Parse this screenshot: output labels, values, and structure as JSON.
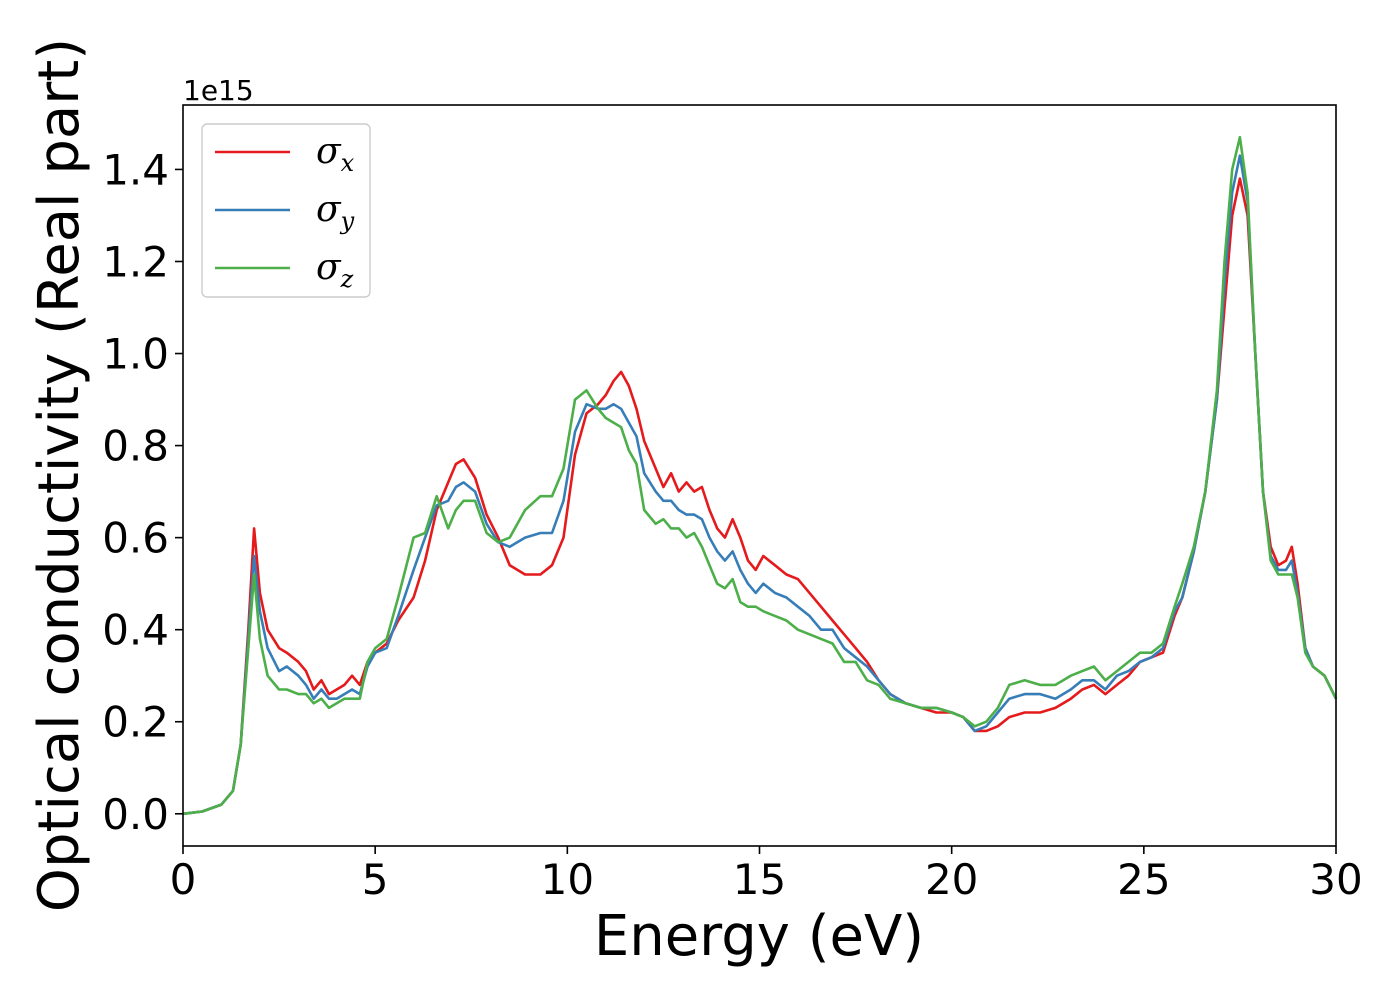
{
  "chart_data": {
    "type": "line",
    "xlabel": "Energy (eV)",
    "ylabel": "Optical conductivity (Real part)",
    "y_offset_label": "1e15",
    "xlim": [
      0,
      30
    ],
    "ylim": [
      -0.07,
      1.54
    ],
    "xticks": [
      0,
      5,
      10,
      15,
      20,
      25,
      30
    ],
    "xtick_labels": [
      "0",
      "5",
      "10",
      "15",
      "20",
      "25",
      "30"
    ],
    "yticks": [
      0.0,
      0.2,
      0.4,
      0.6,
      0.8,
      1.0,
      1.2,
      1.4
    ],
    "ytick_labels": [
      "0.0",
      "0.2",
      "0.4",
      "0.6",
      "0.8",
      "1.0",
      "1.2",
      "1.4"
    ],
    "grid": false,
    "legend_position": "top-left",
    "series": [
      {
        "name": "σx",
        "symbol": "σ",
        "sub": "x",
        "color": "#e41a1c",
        "x": [
          0,
          0.5,
          1.0,
          1.3,
          1.5,
          1.7,
          1.85,
          2.0,
          2.2,
          2.5,
          2.7,
          3.0,
          3.2,
          3.4,
          3.6,
          3.8,
          4.0,
          4.2,
          4.4,
          4.6,
          4.8,
          5.0,
          5.3,
          5.6,
          6.0,
          6.3,
          6.6,
          6.9,
          7.1,
          7.3,
          7.6,
          7.9,
          8.2,
          8.5,
          8.9,
          9.3,
          9.6,
          9.9,
          10.2,
          10.5,
          10.8,
          11.0,
          11.2,
          11.4,
          11.6,
          11.8,
          12.0,
          12.3,
          12.5,
          12.7,
          12.9,
          13.1,
          13.3,
          13.5,
          13.7,
          13.9,
          14.1,
          14.3,
          14.5,
          14.7,
          14.9,
          15.1,
          15.4,
          15.7,
          16.0,
          16.3,
          16.6,
          16.9,
          17.2,
          17.5,
          17.8,
          18.1,
          18.4,
          18.8,
          19.2,
          19.6,
          20.0,
          20.3,
          20.6,
          20.9,
          21.2,
          21.5,
          21.9,
          22.3,
          22.7,
          23.1,
          23.4,
          23.7,
          24.0,
          24.3,
          24.6,
          24.9,
          25.2,
          25.5,
          25.8,
          26.0,
          26.3,
          26.6,
          26.9,
          27.1,
          27.3,
          27.5,
          27.7,
          27.9,
          28.1,
          28.3,
          28.5,
          28.7,
          28.85,
          29.0,
          29.2,
          29.4,
          29.7,
          30.0
        ],
        "y": [
          0,
          0.005,
          0.02,
          0.05,
          0.15,
          0.4,
          0.62,
          0.48,
          0.4,
          0.36,
          0.35,
          0.33,
          0.31,
          0.27,
          0.29,
          0.26,
          0.27,
          0.28,
          0.3,
          0.28,
          0.33,
          0.35,
          0.37,
          0.42,
          0.47,
          0.55,
          0.66,
          0.72,
          0.76,
          0.77,
          0.73,
          0.65,
          0.6,
          0.54,
          0.52,
          0.52,
          0.54,
          0.6,
          0.78,
          0.87,
          0.89,
          0.91,
          0.94,
          0.96,
          0.93,
          0.88,
          0.81,
          0.75,
          0.71,
          0.74,
          0.7,
          0.72,
          0.7,
          0.71,
          0.66,
          0.62,
          0.6,
          0.64,
          0.6,
          0.55,
          0.53,
          0.56,
          0.54,
          0.52,
          0.51,
          0.48,
          0.45,
          0.42,
          0.39,
          0.36,
          0.33,
          0.29,
          0.26,
          0.24,
          0.23,
          0.22,
          0.22,
          0.21,
          0.18,
          0.18,
          0.19,
          0.21,
          0.22,
          0.22,
          0.23,
          0.25,
          0.27,
          0.28,
          0.26,
          0.28,
          0.3,
          0.33,
          0.34,
          0.35,
          0.43,
          0.47,
          0.57,
          0.7,
          0.9,
          1.1,
          1.3,
          1.38,
          1.3,
          1.0,
          0.7,
          0.58,
          0.54,
          0.55,
          0.58,
          0.5,
          0.36,
          0.32,
          0.3,
          0.25
        ]
      },
      {
        "name": "σy",
        "symbol": "σ",
        "sub": "y",
        "color": "#377eb8",
        "x": [
          0,
          0.5,
          1.0,
          1.3,
          1.5,
          1.7,
          1.85,
          2.0,
          2.2,
          2.5,
          2.7,
          3.0,
          3.2,
          3.4,
          3.6,
          3.8,
          4.0,
          4.2,
          4.4,
          4.6,
          4.8,
          5.0,
          5.3,
          5.6,
          6.0,
          6.3,
          6.6,
          6.9,
          7.1,
          7.3,
          7.6,
          7.9,
          8.2,
          8.5,
          8.9,
          9.3,
          9.6,
          9.9,
          10.2,
          10.5,
          10.8,
          11.0,
          11.2,
          11.4,
          11.6,
          11.8,
          12.0,
          12.3,
          12.5,
          12.7,
          12.9,
          13.1,
          13.3,
          13.5,
          13.7,
          13.9,
          14.1,
          14.3,
          14.5,
          14.7,
          14.9,
          15.1,
          15.4,
          15.7,
          16.0,
          16.3,
          16.6,
          16.9,
          17.2,
          17.5,
          17.8,
          18.1,
          18.4,
          18.8,
          19.2,
          19.6,
          20.0,
          20.3,
          20.6,
          20.9,
          21.2,
          21.5,
          21.9,
          22.3,
          22.7,
          23.1,
          23.4,
          23.7,
          24.0,
          24.3,
          24.6,
          24.9,
          25.2,
          25.5,
          25.8,
          26.0,
          26.3,
          26.6,
          26.9,
          27.1,
          27.3,
          27.5,
          27.7,
          27.9,
          28.1,
          28.3,
          28.5,
          28.7,
          28.85,
          29.0,
          29.2,
          29.4,
          29.7,
          30.0
        ],
        "y": [
          0,
          0.005,
          0.02,
          0.05,
          0.15,
          0.38,
          0.56,
          0.44,
          0.36,
          0.31,
          0.32,
          0.3,
          0.28,
          0.25,
          0.27,
          0.25,
          0.25,
          0.26,
          0.27,
          0.26,
          0.32,
          0.35,
          0.36,
          0.43,
          0.53,
          0.6,
          0.67,
          0.68,
          0.71,
          0.72,
          0.7,
          0.63,
          0.59,
          0.58,
          0.6,
          0.61,
          0.61,
          0.68,
          0.83,
          0.89,
          0.88,
          0.88,
          0.89,
          0.88,
          0.85,
          0.82,
          0.74,
          0.7,
          0.68,
          0.68,
          0.66,
          0.65,
          0.65,
          0.64,
          0.6,
          0.57,
          0.55,
          0.57,
          0.53,
          0.5,
          0.48,
          0.5,
          0.48,
          0.47,
          0.45,
          0.43,
          0.4,
          0.4,
          0.36,
          0.34,
          0.32,
          0.29,
          0.26,
          0.24,
          0.23,
          0.23,
          0.22,
          0.21,
          0.18,
          0.19,
          0.22,
          0.25,
          0.26,
          0.26,
          0.25,
          0.27,
          0.29,
          0.29,
          0.27,
          0.3,
          0.31,
          0.33,
          0.34,
          0.36,
          0.44,
          0.47,
          0.57,
          0.7,
          0.9,
          1.15,
          1.35,
          1.43,
          1.33,
          1.0,
          0.7,
          0.56,
          0.53,
          0.53,
          0.55,
          0.48,
          0.36,
          0.32,
          0.3,
          0.25
        ]
      },
      {
        "name": "σz",
        "symbol": "σ",
        "sub": "z",
        "color": "#4daf4a",
        "x": [
          0,
          0.5,
          1.0,
          1.3,
          1.5,
          1.7,
          1.85,
          2.0,
          2.2,
          2.5,
          2.7,
          3.0,
          3.2,
          3.4,
          3.6,
          3.8,
          4.0,
          4.2,
          4.4,
          4.6,
          4.8,
          5.0,
          5.3,
          5.6,
          6.0,
          6.3,
          6.6,
          6.9,
          7.1,
          7.3,
          7.6,
          7.9,
          8.2,
          8.5,
          8.9,
          9.3,
          9.6,
          9.9,
          10.2,
          10.5,
          10.8,
          11.0,
          11.2,
          11.4,
          11.6,
          11.8,
          12.0,
          12.3,
          12.5,
          12.7,
          12.9,
          13.1,
          13.3,
          13.5,
          13.7,
          13.9,
          14.1,
          14.3,
          14.5,
          14.7,
          14.9,
          15.1,
          15.4,
          15.7,
          16.0,
          16.3,
          16.6,
          16.9,
          17.2,
          17.5,
          17.8,
          18.1,
          18.4,
          18.8,
          19.2,
          19.6,
          20.0,
          20.3,
          20.6,
          20.9,
          21.2,
          21.5,
          21.9,
          22.3,
          22.7,
          23.1,
          23.4,
          23.7,
          24.0,
          24.3,
          24.6,
          24.9,
          25.2,
          25.5,
          25.8,
          26.0,
          26.3,
          26.6,
          26.9,
          27.1,
          27.3,
          27.5,
          27.7,
          27.9,
          28.1,
          28.3,
          28.5,
          28.7,
          28.85,
          29.0,
          29.2,
          29.4,
          29.7,
          30.0
        ],
        "y": [
          0,
          0.005,
          0.02,
          0.05,
          0.15,
          0.36,
          0.52,
          0.38,
          0.3,
          0.27,
          0.27,
          0.26,
          0.26,
          0.24,
          0.25,
          0.23,
          0.24,
          0.25,
          0.25,
          0.25,
          0.33,
          0.36,
          0.38,
          0.47,
          0.6,
          0.61,
          0.69,
          0.62,
          0.66,
          0.68,
          0.68,
          0.61,
          0.59,
          0.6,
          0.66,
          0.69,
          0.69,
          0.75,
          0.9,
          0.92,
          0.88,
          0.86,
          0.85,
          0.84,
          0.79,
          0.76,
          0.66,
          0.63,
          0.64,
          0.62,
          0.62,
          0.6,
          0.61,
          0.58,
          0.54,
          0.5,
          0.49,
          0.51,
          0.46,
          0.45,
          0.45,
          0.44,
          0.43,
          0.42,
          0.4,
          0.39,
          0.38,
          0.37,
          0.33,
          0.33,
          0.29,
          0.28,
          0.25,
          0.24,
          0.23,
          0.23,
          0.22,
          0.21,
          0.19,
          0.2,
          0.23,
          0.28,
          0.29,
          0.28,
          0.28,
          0.3,
          0.31,
          0.32,
          0.29,
          0.31,
          0.33,
          0.35,
          0.35,
          0.37,
          0.45,
          0.5,
          0.58,
          0.7,
          0.92,
          1.2,
          1.4,
          1.47,
          1.35,
          1.0,
          0.7,
          0.55,
          0.52,
          0.52,
          0.52,
          0.47,
          0.35,
          0.32,
          0.3,
          0.25
        ]
      }
    ]
  }
}
